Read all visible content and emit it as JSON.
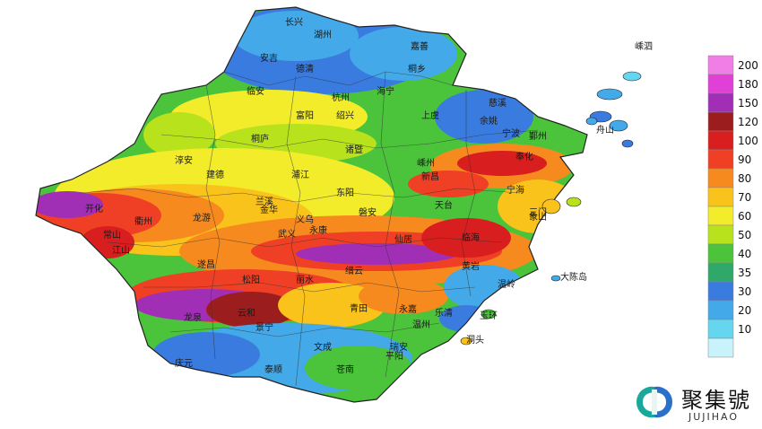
{
  "legend": {
    "bands": [
      {
        "label": "200",
        "color": "#f07ee6"
      },
      {
        "label": "180",
        "color": "#e040d6"
      },
      {
        "label": "150",
        "color": "#a12fb5"
      },
      {
        "label": "120",
        "color": "#9c1d1d"
      },
      {
        "label": "100",
        "color": "#d81e1e"
      },
      {
        "label": "90",
        "color": "#ef3f24"
      },
      {
        "label": "80",
        "color": "#f78a1e"
      },
      {
        "label": "70",
        "color": "#f9c31c"
      },
      {
        "label": "60",
        "color": "#f3ec2a"
      },
      {
        "label": "50",
        "color": "#b8e21c"
      },
      {
        "label": "40",
        "color": "#4bc33b"
      },
      {
        "label": "35",
        "color": "#2fa86a"
      },
      {
        "label": "30",
        "color": "#3a7be0"
      },
      {
        "label": "20",
        "color": "#43a9e8"
      },
      {
        "label": "10",
        "color": "#65d6f0"
      },
      {
        "label": "",
        "color": "#c9f3fb"
      }
    ]
  },
  "cities": [
    {
      "name": "长兴"
    },
    {
      "name": "湖州"
    },
    {
      "name": "嘉善"
    },
    {
      "name": "安吉"
    },
    {
      "name": "德清"
    },
    {
      "name": "桐乡"
    },
    {
      "name": "临安"
    },
    {
      "name": "杭州"
    },
    {
      "name": "海宁"
    },
    {
      "name": "绍兴"
    },
    {
      "name": "上虞"
    },
    {
      "name": "余姚"
    },
    {
      "name": "慈溪"
    },
    {
      "name": "宁波"
    },
    {
      "name": "鄞州"
    },
    {
      "name": "富阳"
    },
    {
      "name": "桐庐"
    },
    {
      "name": "诸暨"
    },
    {
      "name": "嵊州"
    },
    {
      "name": "新昌"
    },
    {
      "name": "奉化"
    },
    {
      "name": "宁海"
    },
    {
      "name": "象山"
    },
    {
      "name": "建德"
    },
    {
      "name": "浦江"
    },
    {
      "name": "淳安"
    },
    {
      "name": "兰溪"
    },
    {
      "name": "义乌"
    },
    {
      "name": "东阳"
    },
    {
      "name": "天台"
    },
    {
      "name": "三门"
    },
    {
      "name": "开化"
    },
    {
      "name": "衢州"
    },
    {
      "name": "龙游"
    },
    {
      "name": "金华"
    },
    {
      "name": "武义"
    },
    {
      "name": "永康"
    },
    {
      "name": "磐安"
    },
    {
      "name": "仙居"
    },
    {
      "name": "临海"
    },
    {
      "name": "常山"
    },
    {
      "name": "江山"
    },
    {
      "name": "遂昌"
    },
    {
      "name": "丽水"
    },
    {
      "name": "缙云"
    },
    {
      "name": "松阳"
    },
    {
      "name": "青田"
    },
    {
      "name": "黄岩"
    },
    {
      "name": "温岭"
    },
    {
      "name": "玉环"
    },
    {
      "name": "龙泉"
    },
    {
      "name": "云和"
    },
    {
      "name": "景宁"
    },
    {
      "name": "永嘉"
    },
    {
      "name": "乐清"
    },
    {
      "name": "温州"
    },
    {
      "name": "庆元"
    },
    {
      "name": "泰顺"
    },
    {
      "name": "文成"
    },
    {
      "name": "瑞安"
    },
    {
      "name": "平阳"
    },
    {
      "name": "苍南"
    },
    {
      "name": "舟山"
    },
    {
      "name": "大陈岛"
    },
    {
      "name": "嵊泗"
    },
    {
      "name": "洞头"
    }
  ],
  "logo": {
    "name_cn": "聚集號",
    "name_en": "JUJIHAO"
  }
}
